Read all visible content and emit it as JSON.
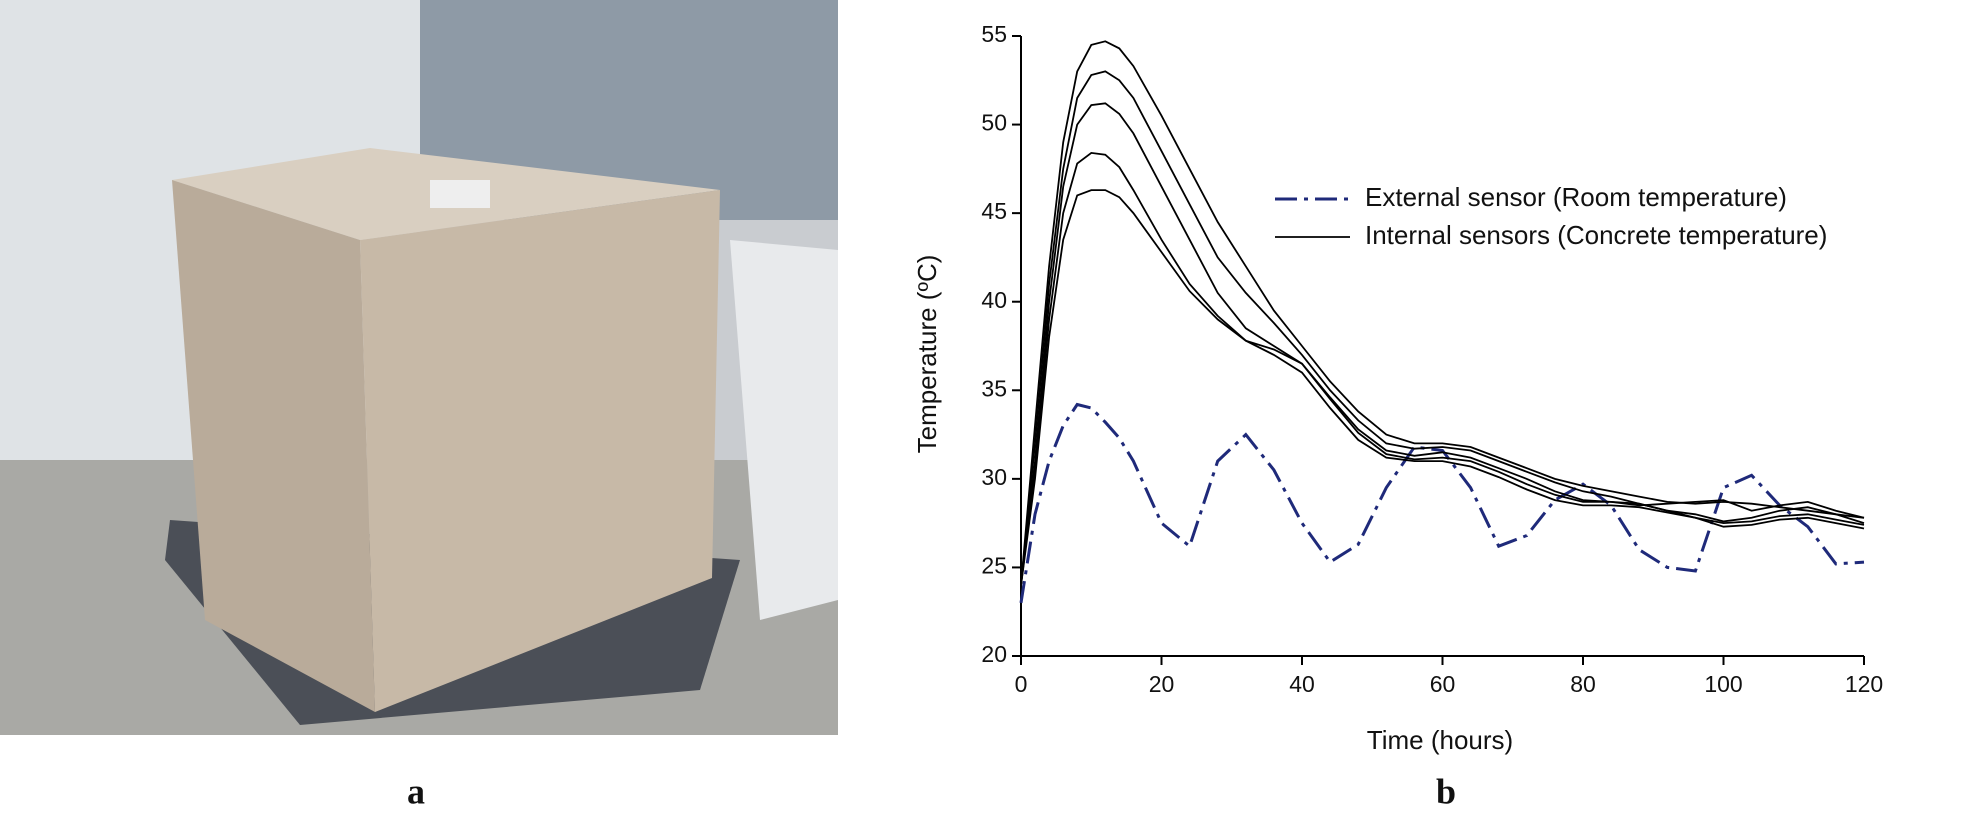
{
  "panel_labels": [
    "a",
    "b"
  ],
  "chart_data": {
    "type": "line",
    "xlabel": "Time (hours)",
    "ylabel": "Temperature (ºC)",
    "x": [
      0,
      2,
      4,
      6,
      8,
      10,
      12,
      14,
      16,
      20,
      24,
      28,
      32,
      36,
      40,
      44,
      48,
      52,
      56,
      60,
      64,
      68,
      72,
      76,
      80,
      84,
      88,
      92,
      96,
      100,
      104,
      108,
      112,
      116,
      120
    ],
    "xlim": [
      0,
      120
    ],
    "xticks": [
      0,
      20,
      40,
      60,
      80,
      100,
      120
    ],
    "ylim": [
      20,
      55
    ],
    "yticks": [
      20,
      25,
      30,
      35,
      40,
      45,
      50,
      55
    ],
    "legend": "upper right",
    "series": [
      {
        "name": "External sensor (Room temperature)",
        "color": "#1f2a7a",
        "dash": "dashdot",
        "values": [
          23,
          28,
          31,
          33,
          34.2,
          34,
          33.2,
          32.3,
          31,
          27.5,
          26.2,
          31,
          32.5,
          30.5,
          27.5,
          25.3,
          26.3,
          29.5,
          31.8,
          31.6,
          29.5,
          26.2,
          26.8,
          28.8,
          29.7,
          28.5,
          26,
          25,
          24.8,
          29.5,
          30.2,
          28.5,
          27.3,
          25.2,
          25.3
        ]
      },
      {
        "name": "Internal sensors (Concrete temperature)",
        "color": "#000000",
        "values": [
          24,
          33,
          42,
          49,
          53,
          54.5,
          54.7,
          54.3,
          53.3,
          50.5,
          47.5,
          44.5,
          42,
          39.5,
          37.5,
          35.5,
          33.8,
          32.5,
          32,
          32,
          31.8,
          31.2,
          30.6,
          30,
          29.6,
          29.3,
          29,
          28.7,
          28.6,
          28.7,
          28.6,
          28.4,
          28.2,
          28,
          27.8
        ]
      },
      {
        "color": "#000000",
        "values": [
          24,
          32,
          41,
          47.5,
          51.5,
          52.8,
          53,
          52.5,
          51.5,
          48.5,
          45.5,
          42.5,
          40.5,
          38.8,
          37,
          35,
          33.3,
          32,
          31.7,
          31.8,
          31.6,
          31,
          30.4,
          29.8,
          29.3,
          29,
          28.6,
          28.2,
          28,
          27.6,
          27.8,
          28.2,
          28.4,
          28,
          27.5
        ]
      },
      {
        "color": "#000000",
        "values": [
          24,
          31,
          40,
          46.5,
          50,
          51.1,
          51.2,
          50.6,
          49.5,
          46.5,
          43.5,
          40.5,
          38.5,
          37.5,
          36.5,
          34.6,
          32.8,
          31.6,
          31.3,
          31.5,
          31.2,
          30.6,
          30,
          29.3,
          28.8,
          28.7,
          28.6,
          28.2,
          27.8,
          27.3,
          27.4,
          27.7,
          27.8,
          27.5,
          27.2
        ]
      },
      {
        "color": "#000000",
        "values": [
          24,
          30.5,
          39,
          45,
          47.8,
          48.4,
          48.3,
          47.6,
          46.3,
          43.5,
          41,
          39.2,
          37.8,
          37.3,
          36.5,
          34.5,
          32.6,
          31.4,
          31.1,
          31.2,
          31,
          30.4,
          29.7,
          29.1,
          28.7,
          28.7,
          28.5,
          28.6,
          28.7,
          28.8,
          28.2,
          28.5,
          28.7,
          28.2,
          27.8
        ]
      },
      {
        "color": "#000000",
        "values": [
          24,
          30,
          38,
          43.5,
          46,
          46.3,
          46.3,
          45.9,
          45,
          42.8,
          40.6,
          39,
          37.8,
          37,
          36,
          34,
          32.2,
          31.2,
          31,
          31,
          30.7,
          30.1,
          29.4,
          28.8,
          28.5,
          28.5,
          28.4,
          28.1,
          27.8,
          27.5,
          27.6,
          27.9,
          28,
          27.7,
          27.4
        ]
      }
    ]
  }
}
